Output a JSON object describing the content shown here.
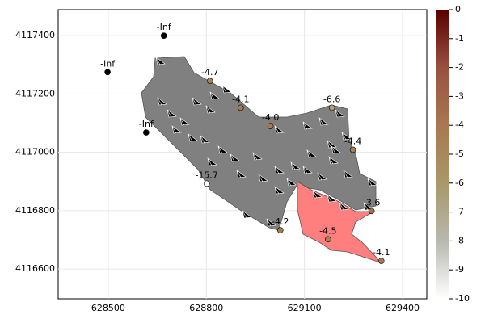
{
  "chart_data": {
    "type": "scatter",
    "x": [
      628670,
      628498,
      628616,
      628811,
      628905,
      628996,
      629184,
      629248,
      628801,
      629026,
      629172,
      629305,
      629335
    ],
    "y": [
      4117400,
      4117275,
      4117068,
      4117245,
      4117153,
      4117090,
      4117153,
      4117009,
      4116893,
      4116733,
      4116702,
      4116799,
      4116628
    ],
    "values": [
      null,
      null,
      null,
      -4.7,
      -4.1,
      -4.0,
      -6.6,
      -4.4,
      -15.7,
      -4.2,
      -4.5,
      -3.6,
      -4.1
    ],
    "value_labels": [
      "-Inf",
      "-Inf",
      "-Inf",
      "-4.7",
      "-4.1",
      "-4.0",
      "-6.6",
      "-4.4",
      "-15.7",
      "-4.2",
      "-4.5",
      "-3.6",
      "-4.1"
    ],
    "xlim": [
      628347,
      629474
    ],
    "ylim": [
      4116498,
      4117489
    ],
    "xticks": [
      628500,
      628800,
      629100,
      629400
    ],
    "yticks": [
      4116600,
      4116800,
      4117000,
      4117200,
      4117400
    ],
    "grid": true,
    "colorbar": {
      "lim": [
        -10,
        0
      ],
      "ticks": [
        0,
        -1,
        -2,
        -3,
        -4,
        -5,
        -6,
        -7,
        -8,
        -9,
        -10
      ],
      "colormap": [
        "#ffffff",
        "#b8b8b0",
        "#a89868",
        "#a87850",
        "#9a5040",
        "#5a0000"
      ]
    },
    "missing_color": "#000000"
  }
}
